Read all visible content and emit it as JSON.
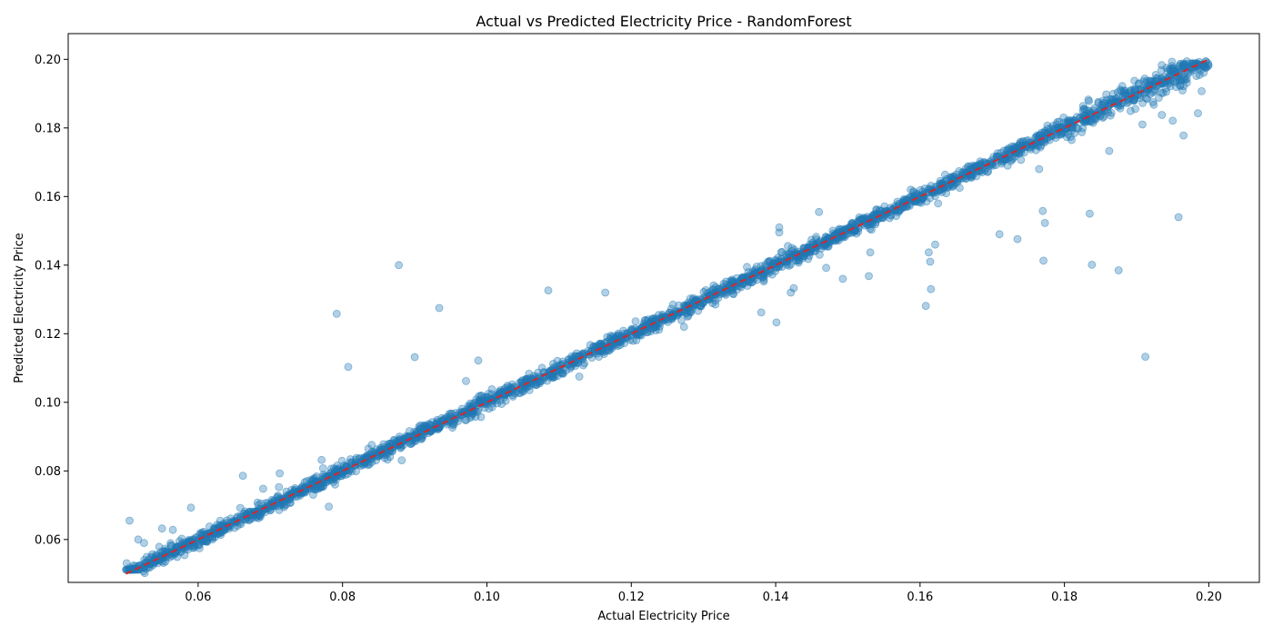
{
  "chart_data": {
    "type": "scatter",
    "title": "Actual vs Predicted Electricity Price - RandomForest",
    "xlabel": "Actual Electricity Price",
    "ylabel": "Predicted Electricity Price",
    "xlim": [
      0.042,
      0.207
    ],
    "ylim": [
      0.0475,
      0.2075
    ],
    "xticks": [
      "0.06",
      "0.08",
      "0.10",
      "0.12",
      "0.14",
      "0.16",
      "0.18",
      "0.20"
    ],
    "yticks": [
      "0.06",
      "0.08",
      "0.10",
      "0.12",
      "0.14",
      "0.16",
      "0.18",
      "0.20"
    ],
    "grid": false,
    "point_color": "#1f77b4",
    "point_opacity": 0.35,
    "reference_line": {
      "style": "dashed",
      "color": "#d62728",
      "from": [
        0.05,
        0.05
      ],
      "to": [
        0.2,
        0.2
      ]
    },
    "outliers": [
      {
        "x": 0.0505,
        "y": 0.0655
      },
      {
        "x": 0.0517,
        "y": 0.06
      },
      {
        "x": 0.0525,
        "y": 0.059
      },
      {
        "x": 0.055,
        "y": 0.0632
      },
      {
        "x": 0.0565,
        "y": 0.0628
      },
      {
        "x": 0.059,
        "y": 0.0693
      },
      {
        "x": 0.0662,
        "y": 0.0786
      },
      {
        "x": 0.069,
        "y": 0.0748
      },
      {
        "x": 0.0713,
        "y": 0.0793
      },
      {
        "x": 0.0712,
        "y": 0.0753
      },
      {
        "x": 0.0771,
        "y": 0.0832
      },
      {
        "x": 0.0781,
        "y": 0.0696
      },
      {
        "x": 0.0792,
        "y": 0.1258
      },
      {
        "x": 0.0808,
        "y": 0.1103
      },
      {
        "x": 0.0878,
        "y": 0.14
      },
      {
        "x": 0.0882,
        "y": 0.0831
      },
      {
        "x": 0.09,
        "y": 0.1132
      },
      {
        "x": 0.0934,
        "y": 0.1275
      },
      {
        "x": 0.0971,
        "y": 0.1062
      },
      {
        "x": 0.0988,
        "y": 0.1122
      },
      {
        "x": 0.1085,
        "y": 0.1326
      },
      {
        "x": 0.1128,
        "y": 0.1075
      },
      {
        "x": 0.1164,
        "y": 0.132
      },
      {
        "x": 0.1273,
        "y": 0.122
      },
      {
        "x": 0.138,
        "y": 0.1262
      },
      {
        "x": 0.1401,
        "y": 0.1233
      },
      {
        "x": 0.1405,
        "y": 0.151
      },
      {
        "x": 0.1405,
        "y": 0.1495
      },
      {
        "x": 0.1421,
        "y": 0.132
      },
      {
        "x": 0.1425,
        "y": 0.1333
      },
      {
        "x": 0.146,
        "y": 0.1555
      },
      {
        "x": 0.147,
        "y": 0.1392
      },
      {
        "x": 0.1493,
        "y": 0.136
      },
      {
        "x": 0.1529,
        "y": 0.1368
      },
      {
        "x": 0.1531,
        "y": 0.1437
      },
      {
        "x": 0.1608,
        "y": 0.1281
      },
      {
        "x": 0.1612,
        "y": 0.1437
      },
      {
        "x": 0.1614,
        "y": 0.141
      },
      {
        "x": 0.1615,
        "y": 0.133
      },
      {
        "x": 0.1621,
        "y": 0.146
      },
      {
        "x": 0.1625,
        "y": 0.158
      },
      {
        "x": 0.171,
        "y": 0.149
      },
      {
        "x": 0.1735,
        "y": 0.1476
      },
      {
        "x": 0.177,
        "y": 0.1558
      },
      {
        "x": 0.1773,
        "y": 0.1523
      },
      {
        "x": 0.1771,
        "y": 0.1413
      },
      {
        "x": 0.1765,
        "y": 0.168
      },
      {
        "x": 0.1835,
        "y": 0.155
      },
      {
        "x": 0.1838,
        "y": 0.1401
      },
      {
        "x": 0.1862,
        "y": 0.1733
      },
      {
        "x": 0.1875,
        "y": 0.1385
      },
      {
        "x": 0.1912,
        "y": 0.1133
      },
      {
        "x": 0.1908,
        "y": 0.181
      },
      {
        "x": 0.1935,
        "y": 0.1838
      },
      {
        "x": 0.195,
        "y": 0.1821
      },
      {
        "x": 0.1958,
        "y": 0.154
      },
      {
        "x": 0.1965,
        "y": 0.1778
      },
      {
        "x": 0.1985,
        "y": 0.1843
      },
      {
        "x": 0.199,
        "y": 0.1907
      }
    ]
  }
}
